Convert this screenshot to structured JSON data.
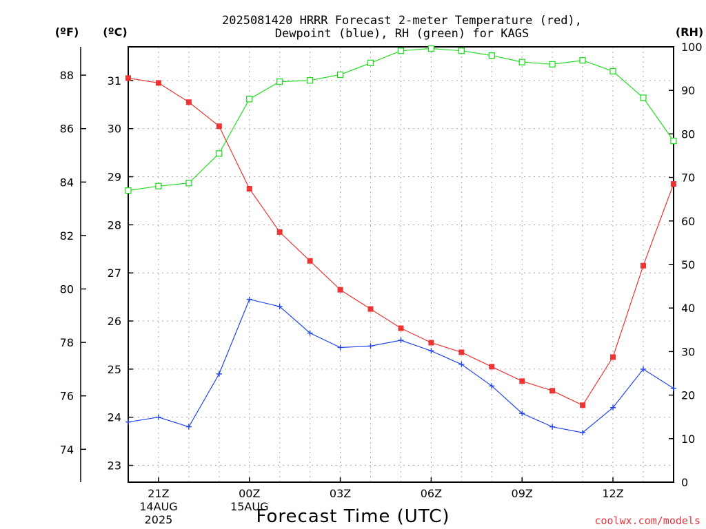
{
  "title_line1": "2025081420 HRRR Forecast 2-meter Temperature (red),",
  "title_line2": "Dewpoint (blue), RH (green) for KAGS",
  "unit_f": "(ºF)",
  "unit_c": "(ºC)",
  "unit_rh": "(RH)",
  "xlabel": "Forecast Time (UTC)",
  "credit": "coolwx.com/models",
  "chart_data": {
    "type": "line",
    "title": "2025081420 HRRR Forecast 2-meter Temperature (red), Dewpoint (blue), RH (green) for KAGS",
    "xlabel": "Forecast Time (UTC)",
    "x": [
      "20Z",
      "21Z",
      "22Z",
      "23Z",
      "00Z",
      "01Z",
      "02Z",
      "03Z",
      "04Z",
      "05Z",
      "06Z",
      "07Z",
      "08Z",
      "09Z",
      "10Z",
      "11Z",
      "12Z",
      "13Z",
      "14Z"
    ],
    "x_tick_labels": [
      {
        "hour": "21Z",
        "lines": [
          "21Z",
          "14AUG",
          "2025"
        ]
      },
      {
        "hour": "00Z",
        "lines": [
          "00Z",
          "15AUG"
        ]
      },
      {
        "hour": "03Z",
        "lines": [
          "03Z"
        ]
      },
      {
        "hour": "06Z",
        "lines": [
          "06Z"
        ]
      },
      {
        "hour": "09Z",
        "lines": [
          "09Z"
        ]
      },
      {
        "hour": "12Z",
        "lines": [
          "12Z"
        ]
      }
    ],
    "axes": {
      "celsius": {
        "ticks": [
          "23",
          "24",
          "25",
          "26",
          "27",
          "28",
          "29",
          "30",
          "31"
        ],
        "range": [
          22.65,
          31.7
        ]
      },
      "fahrenheit": {
        "ticks": [
          "74",
          "76",
          "78",
          "80",
          "82",
          "84",
          "86",
          "88"
        ],
        "range": [
          72.77,
          89.06
        ]
      },
      "rh": {
        "ticks": [
          "0",
          "10",
          "20",
          "30",
          "40",
          "50",
          "60",
          "70",
          "80",
          "90",
          "100"
        ],
        "range": [
          0,
          100
        ]
      }
    },
    "grid": true,
    "series": [
      {
        "name": "Temperature",
        "axis": "celsius",
        "color": "#ee3333",
        "marker": "filled-square",
        "values": [
          31.05,
          30.95,
          30.55,
          30.05,
          28.75,
          27.85,
          27.25,
          26.65,
          26.25,
          25.85,
          25.55,
          25.35,
          25.05,
          24.75,
          24.55,
          24.25,
          25.25,
          27.15,
          28.85
        ]
      },
      {
        "name": "Dewpoint",
        "axis": "celsius",
        "color": "#2244ee",
        "marker": "plus",
        "values": [
          23.9,
          24.0,
          23.8,
          24.9,
          26.45,
          26.3,
          25.75,
          25.45,
          25.48,
          25.6,
          25.38,
          25.1,
          24.65,
          24.08,
          23.8,
          23.68,
          24.2,
          25.0,
          24.6
        ]
      },
      {
        "name": "RH",
        "axis": "rh",
        "color": "#22dd22",
        "marker": "open-square",
        "values": [
          67,
          68,
          68.7,
          75.5,
          88,
          92,
          92.3,
          93.6,
          96.3,
          99.1,
          99.6,
          99.1,
          98,
          96.5,
          96,
          96.9,
          94.4,
          88.3,
          78.4
        ]
      }
    ]
  }
}
